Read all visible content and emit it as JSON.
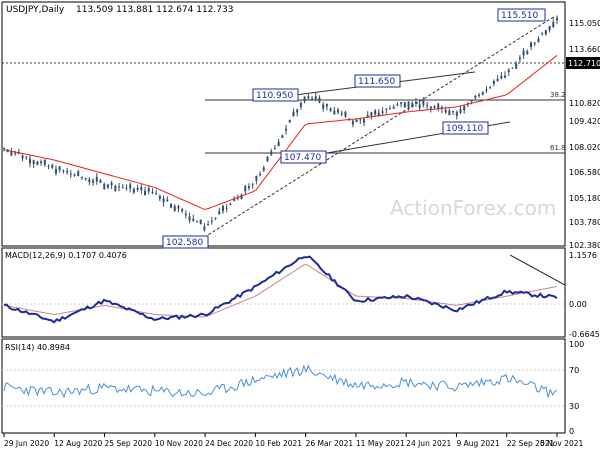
{
  "header": {
    "symbol": "USDJPY,Daily",
    "ohlc": "113.509 113.881 112.674 112.733"
  },
  "watermark": "ActionForex.com",
  "price_axis": [
    "115.050",
    "113.660",
    "110.820",
    "109.420",
    "108.020",
    "106.580",
    "105.180",
    "103.780",
    "102.380"
  ],
  "current_price": "112.710",
  "fib_labels": [
    "38.2",
    "61.8"
  ],
  "annotations": [
    "115.510",
    "111.650",
    "110.950",
    "107.470",
    "109.110",
    "102.580"
  ],
  "macd": {
    "label": "MACD(12,26,9) 0.1707 0.4076",
    "axis": [
      "1.1576",
      "0.00",
      "-0.6645"
    ]
  },
  "rsi": {
    "label": "RSI(14) 40.8984",
    "axis": [
      "100",
      "70",
      "30",
      "0"
    ]
  },
  "dates": [
    "29 Jun 2020",
    "12 Aug 2020",
    "25 Sep 2020",
    "10 Nov 2020",
    "24 Dec 2020",
    "10 Feb 2021",
    "26 Mar 2021",
    "11 May 2021",
    "24 Jun 2021",
    "9 Aug 2021",
    "22 Sep 2021",
    "5 Nov 2021"
  ],
  "colors": {
    "candle": "#2f4f6f",
    "ma": "#e8201c",
    "macd": "#1f2b99",
    "signal": "#c08a8a",
    "rsi": "#4a90d9",
    "level": "#333333"
  },
  "chart_data": [
    {
      "type": "line",
      "name": "price",
      "x": [
        "29 Jun 2020",
        "12 Aug 2020",
        "25 Sep 2020",
        "10 Nov 2020",
        "24 Dec 2020",
        "10 Feb 2021",
        "26 Mar 2021",
        "11 May 2021",
        "24 Jun 2021",
        "9 Aug 2021",
        "22 Sep 2021",
        "5 Nov 2021"
      ],
      "series": [
        {
          "values": [
            107.5,
            106.3,
            105.4,
            104.9,
            102.9,
            105.5,
            110.6,
            109.0,
            110.2,
            109.6,
            111.8,
            115.1
          ]
        },
        {
          "values": [
            107.4,
            106.8,
            106.0,
            105.2,
            103.9,
            105.0,
            108.9,
            109.2,
            109.6,
            109.9,
            110.6,
            112.9
          ]
        }
      ],
      "ylim": [
        101.9,
        115.9
      ],
      "levels": [
        115.51,
        111.65,
        110.95,
        109.11,
        107.47,
        102.58
      ]
    },
    {
      "type": "line",
      "name": "macd",
      "x": [
        "29 Jun 2020",
        "12 Aug 2020",
        "25 Sep 2020",
        "10 Nov 2020",
        "24 Dec 2020",
        "10 Feb 2021",
        "26 Mar 2021",
        "11 May 2021",
        "24 Jun 2021",
        "9 Aug 2021",
        "22 Sep 2021",
        "5 Nov 2021"
      ],
      "series": [
        {
          "values": [
            0.0,
            -0.35,
            0.1,
            -0.3,
            -0.2,
            0.4,
            1.1,
            0.1,
            0.2,
            -0.1,
            0.3,
            0.17
          ]
        },
        {
          "values": [
            0.0,
            -0.2,
            0.0,
            -0.2,
            -0.25,
            0.2,
            0.9,
            0.2,
            0.15,
            0.0,
            0.2,
            0.41
          ]
        }
      ],
      "ylim": [
        -0.6645,
        1.1576
      ]
    },
    {
      "type": "line",
      "name": "rsi",
      "x": [
        "29 Jun 2020",
        "12 Aug 2020",
        "25 Sep 2020",
        "10 Nov 2020",
        "24 Dec 2020",
        "10 Feb 2021",
        "26 Mar 2021",
        "11 May 2021",
        "24 Jun 2021",
        "9 Aug 2021",
        "22 Sep 2021",
        "5 Nov 2021"
      ],
      "series": [
        {
          "values": [
            50,
            43,
            49,
            45,
            42,
            58,
            70,
            52,
            56,
            50,
            60,
            41
          ]
        }
      ],
      "ylim": [
        0,
        100
      ]
    }
  ]
}
